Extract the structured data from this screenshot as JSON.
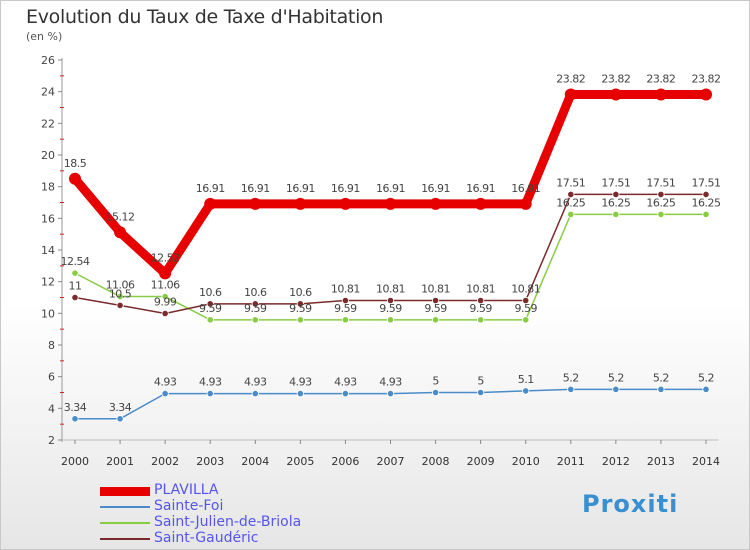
{
  "header": {
    "title": "Evolution du Taux de Taxe d'Habitation",
    "subtitle": "(en %)"
  },
  "logo": {
    "text": "Proxiti"
  },
  "chart_data": {
    "type": "line",
    "title": "Evolution du Taux de Taxe d'Habitation",
    "subtitle": "(en %)",
    "x": [
      2000,
      2001,
      2002,
      2003,
      2004,
      2005,
      2006,
      2007,
      2008,
      2009,
      2010,
      2011,
      2012,
      2013,
      2014
    ],
    "ylim": [
      2,
      26
    ],
    "yticks": [
      2,
      4,
      6,
      8,
      10,
      12,
      14,
      16,
      18,
      20,
      22,
      24,
      26
    ],
    "grid": false,
    "legend_position": "bottom-left",
    "series": [
      {
        "name": "PLAVILLA",
        "color": "#e60000",
        "values": [
          18.5,
          15.12,
          12.52,
          16.91,
          16.91,
          16.91,
          16.91,
          16.91,
          16.91,
          16.91,
          16.91,
          23.82,
          23.82,
          23.82,
          23.82
        ],
        "labels": [
          "18.5",
          "15.12",
          "12.52",
          "16.91",
          "16.91",
          "16.91",
          "16.91",
          "16.91",
          "16.91",
          "16.91",
          "16.91",
          "23.82",
          "23.82",
          "23.82",
          "23.82"
        ]
      },
      {
        "name": "Sainte-Foi",
        "color": "#4a8cc8",
        "values": [
          3.34,
          3.34,
          4.93,
          4.93,
          4.93,
          4.93,
          4.93,
          4.93,
          5,
          5,
          5.1,
          5.2,
          5.2,
          5.2,
          5.2
        ],
        "labels": [
          "3.34",
          "3.34",
          "4.93",
          "4.93",
          "4.93",
          "4.93",
          "4.93",
          "4.93",
          "5",
          "5",
          "5.1",
          "5.2",
          "5.2",
          "5.2",
          "5.2"
        ]
      },
      {
        "name": "Saint-Julien-de-Briola",
        "color": "#88cc44",
        "values": [
          12.54,
          11.06,
          11.06,
          9.59,
          9.59,
          9.59,
          9.59,
          9.59,
          9.59,
          9.59,
          9.59,
          16.25,
          16.25,
          16.25,
          16.25
        ],
        "labels": [
          "12.54",
          "11.06",
          "11.06",
          "9.59",
          "9.59",
          "9.59",
          "9.59",
          "9.59",
          "9.59",
          "9.59",
          "9.59",
          "16.25",
          "16.25",
          "16.25",
          "16.25"
        ]
      },
      {
        "name": "Saint-Gaudéric",
        "color": "#7a2a2a",
        "values": [
          11,
          10.5,
          9.99,
          10.6,
          10.6,
          10.6,
          10.81,
          10.81,
          10.81,
          10.81,
          10.81,
          17.51,
          17.51,
          17.51,
          17.51
        ],
        "labels": [
          "11",
          "10.5",
          "9.99",
          "10.6",
          "10.6",
          "10.6",
          "10.81",
          "10.81",
          "10.81",
          "10.81",
          "10.81",
          "17.51",
          "17.51",
          "17.51",
          "17.51"
        ]
      }
    ]
  }
}
